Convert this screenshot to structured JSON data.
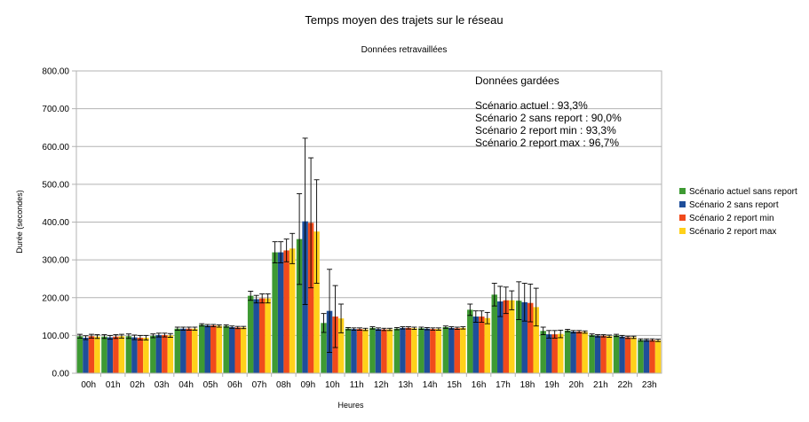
{
  "chart_data": {
    "type": "bar",
    "title": "Temps moyen des trajets sur le réseau",
    "subtitle": "Données retravaillées",
    "xlabel": "Heures",
    "ylabel": "Durée (secondes)",
    "ylim": [
      0,
      800
    ],
    "yticks": [
      "0.00",
      "100.00",
      "200.00",
      "300.00",
      "400.00",
      "500.00",
      "600.00",
      "700.00",
      "800.00"
    ],
    "grid": "horizontal",
    "legend_position": "right",
    "categories": [
      "00h",
      "01h",
      "02h",
      "03h",
      "04h",
      "05h",
      "06h",
      "07h",
      "08h",
      "09h",
      "10h",
      "11h",
      "12h",
      "13h",
      "14h",
      "15h",
      "16h",
      "17h",
      "18h",
      "19h",
      "20h",
      "21h",
      "22h",
      "23h"
    ],
    "series": [
      {
        "name": "Scénario actuel sans report",
        "color": "#3e9a33",
        "values": [
          98,
          97,
          98,
          99,
          118,
          128,
          125,
          205,
          320,
          355,
          133,
          118,
          120,
          118,
          119,
          122,
          168,
          208,
          192,
          112,
          113,
          101,
          100,
          88
        ],
        "errors": [
          5,
          5,
          6,
          5,
          4,
          3,
          3,
          12,
          28,
          120,
          25,
          3,
          3,
          3,
          3,
          3,
          15,
          30,
          50,
          10,
          3,
          3,
          3,
          3
        ]
      },
      {
        "name": "Scénario 2 sans report",
        "color": "#1f4e9a",
        "values": [
          94,
          95,
          95,
          101,
          118,
          126,
          122,
          196,
          320,
          402,
          165,
          117,
          117,
          120,
          118,
          120,
          150,
          190,
          188,
          103,
          110,
          99,
          97,
          88
        ],
        "errors": [
          5,
          5,
          6,
          5,
          4,
          3,
          3,
          10,
          28,
          220,
          110,
          3,
          3,
          3,
          3,
          3,
          15,
          40,
          50,
          10,
          3,
          3,
          3,
          3
        ]
      },
      {
        "name": "Scénario 2 report min",
        "color": "#f04a1c",
        "values": [
          98,
          97,
          94,
          101,
          118,
          126,
          121,
          198,
          325,
          398,
          150,
          117,
          116,
          120,
          117,
          119,
          150,
          193,
          186,
          103,
          110,
          99,
          95,
          88
        ],
        "errors": [
          5,
          5,
          6,
          5,
          4,
          3,
          3,
          12,
          30,
          172,
          82,
          3,
          3,
          3,
          3,
          3,
          15,
          35,
          50,
          10,
          3,
          3,
          3,
          3
        ]
      },
      {
        "name": "Scénario 2 report max",
        "color": "#ffd11a",
        "values": [
          97,
          98,
          94,
          100,
          118,
          125,
          121,
          198,
          330,
          375,
          145,
          116,
          116,
          119,
          117,
          120,
          146,
          193,
          175,
          104,
          109,
          98,
          95,
          87
        ],
        "errors": [
          5,
          5,
          6,
          5,
          4,
          3,
          3,
          12,
          40,
          137,
          38,
          3,
          3,
          3,
          3,
          3,
          15,
          25,
          50,
          10,
          3,
          3,
          3,
          3
        ]
      }
    ],
    "annotation": {
      "heading": "Données gardées",
      "lines": [
        "Scénario actuel : 93,3%",
        "Scénario 2 sans report : 90,0%",
        "Scénario 2 report min : 93,3%",
        "Scénario 2 report max : 96,7%"
      ]
    }
  }
}
